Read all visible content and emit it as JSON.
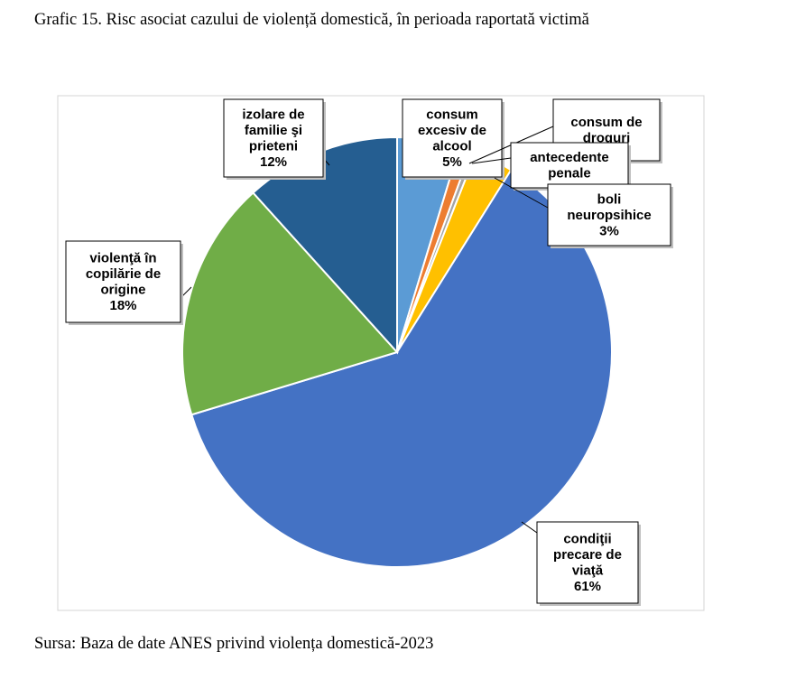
{
  "caption": "Grafic 15. Risc asociat cazului de violență domestică, în perioada raportată victimă",
  "source": "Sursa: Baza de date ANES privind violența domestică-2023",
  "chart_data": {
    "type": "pie",
    "slices": [
      {
        "lines": [
          "consum",
          "excesiv de",
          "alcool"
        ],
        "pct_label": "5%",
        "value": 4.7,
        "color": "#5b9bd5"
      },
      {
        "lines": [
          "consum de",
          "droguri"
        ],
        "pct_label": "",
        "value": 0.9,
        "color": "#ed7d31"
      },
      {
        "lines": [
          "antecedente",
          "penale"
        ],
        "pct_label": "",
        "value": 0.4,
        "color": "#a5a5a5"
      },
      {
        "lines": [
          "boli",
          "neuropsihice"
        ],
        "pct_label": "3%",
        "value": 2.9,
        "color": "#ffc000"
      },
      {
        "lines": [
          "condiţii",
          "precare de",
          "viaţă"
        ],
        "pct_label": "61%",
        "value": 61.4,
        "color": "#4472c4"
      },
      {
        "lines": [
          "violenţă în",
          "copilărie de",
          "origine"
        ],
        "pct_label": "18%",
        "value": 18.0,
        "color": "#70ad47"
      },
      {
        "lines": [
          "izolare de",
          "familie şi",
          "prieteni"
        ],
        "pct_label": "12%",
        "value": 11.7,
        "color": "#255e91"
      }
    ],
    "start_angle_deg": 0,
    "direction": "clockwise",
    "legend": "none"
  }
}
